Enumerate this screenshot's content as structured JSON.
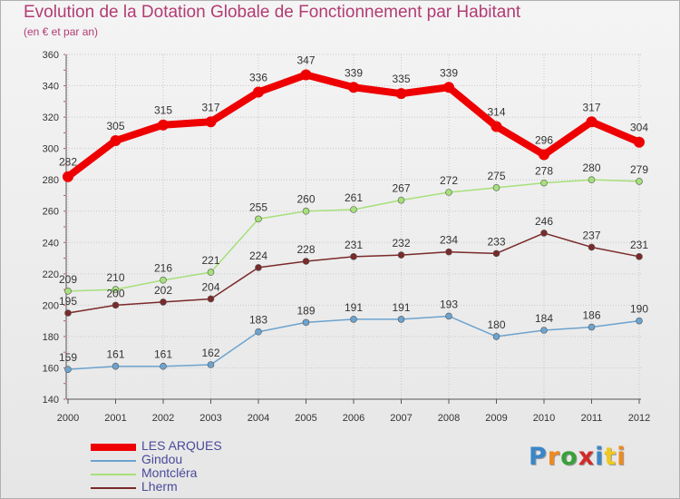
{
  "title": "Evolution de la Dotation Globale de Fonctionnement par Habitant",
  "subtitle": "(en € et par an)",
  "logo": {
    "text": "Proxiti",
    "letter_colors": [
      "#3a86c8",
      "#f08a1e",
      "#3aa03a",
      "#d32a2a",
      "#3a86c8",
      "#f0c81e",
      "#f08a1e"
    ]
  },
  "chart_data": {
    "type": "line",
    "title": "Evolution de la Dotation Globale de Fonctionnement par Habitant",
    "subtitle": "(en € et par an)",
    "xlabel": "",
    "ylabel": "",
    "x": [
      "2000",
      "2001",
      "2002",
      "2003",
      "2004",
      "2005",
      "2006",
      "2007",
      "2008",
      "2009",
      "2010",
      "2011",
      "2012"
    ],
    "ylim": [
      140,
      360
    ],
    "yticks": [
      140,
      160,
      180,
      200,
      220,
      240,
      260,
      280,
      300,
      320,
      340,
      360
    ],
    "grid": true,
    "legend_position": "bottom-left",
    "series": [
      {
        "name": "LES ARQUES",
        "color": "#ee0000",
        "values": [
          282,
          305,
          315,
          317,
          336,
          347,
          339,
          335,
          339,
          314,
          296,
          317,
          304
        ],
        "emphasis": true
      },
      {
        "name": "Gindou",
        "color": "#6ca3cf",
        "values": [
          159,
          161,
          161,
          162,
          183,
          189,
          191,
          191,
          193,
          180,
          184,
          186,
          190
        ]
      },
      {
        "name": "Montcléra",
        "color": "#a6e07a",
        "values": [
          209,
          210,
          216,
          221,
          255,
          260,
          261,
          267,
          272,
          275,
          278,
          280,
          279
        ]
      },
      {
        "name": "Lherm",
        "color": "#7a2a2a",
        "values": [
          195,
          200,
          202,
          204,
          224,
          228,
          231,
          232,
          234,
          233,
          246,
          237,
          231
        ]
      }
    ]
  }
}
